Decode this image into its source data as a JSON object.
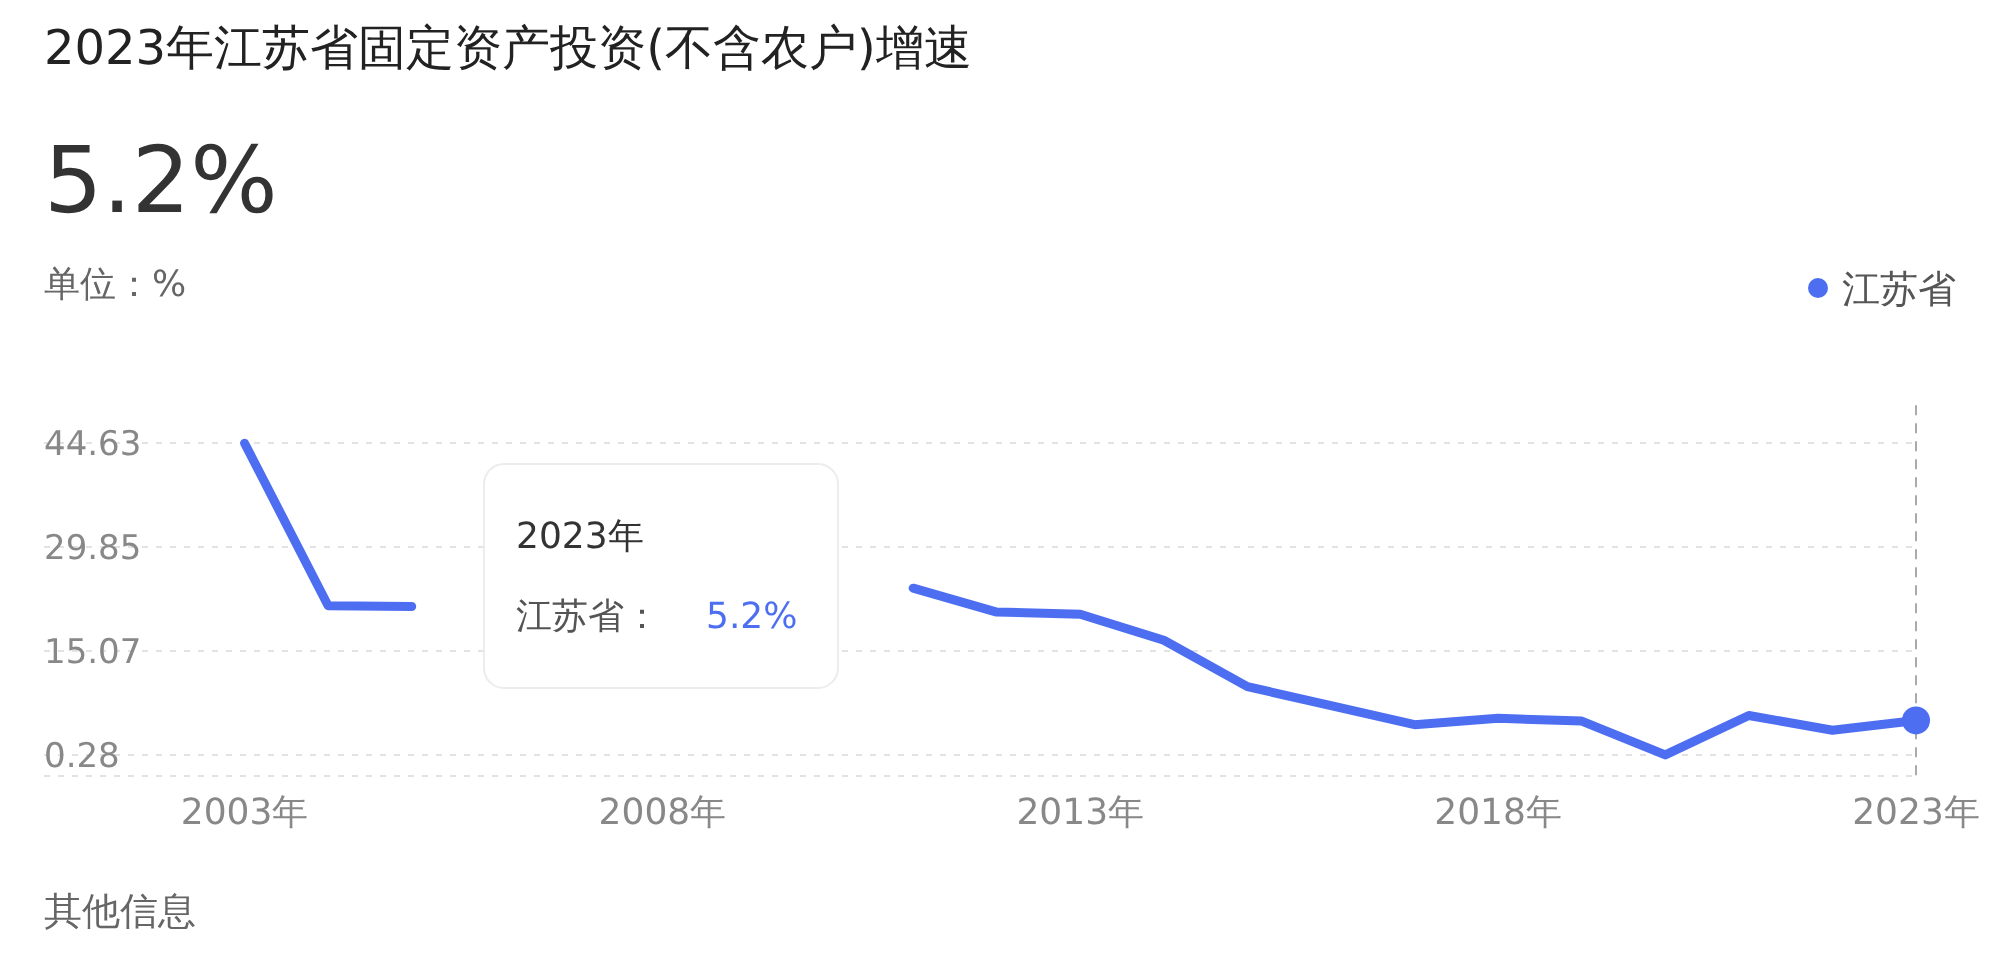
{
  "chart_data": {
    "type": "line",
    "title": "2023年江苏省固定资产投资(不含农户)增速",
    "subtitle": "5.2%",
    "ylabel": "单位：%",
    "x": [
      2003,
      2004,
      2005,
      2006,
      2007,
      2008,
      2009,
      2010,
      2011,
      2012,
      2013,
      2014,
      2015,
      2016,
      2017,
      2018,
      2019,
      2020,
      2021,
      2022,
      2023
    ],
    "series": [
      {
        "name": "江苏省",
        "color": "#4e6ef2",
        "values": [
          44.6,
          21.5,
          21.4,
          null,
          null,
          null,
          null,
          null,
          24.0,
          20.6,
          20.3,
          16.6,
          10.0,
          7.3,
          4.6,
          5.5,
          5.1,
          0.3,
          5.9,
          3.8,
          5.2
        ]
      }
    ],
    "xlim": [
      2000.6,
      2023
    ],
    "ylim": [
      -2.7,
      50
    ],
    "xticks": [
      {
        "value": 2003,
        "label": "2003年"
      },
      {
        "value": 2008,
        "label": "2008年"
      },
      {
        "value": 2013,
        "label": "2013年"
      },
      {
        "value": 2018,
        "label": "2018年"
      },
      {
        "value": 2023,
        "label": "2023年"
      }
    ],
    "yticks": [
      0.28,
      15.07,
      29.85,
      44.63
    ],
    "grid": "y",
    "legend": "top right",
    "marker": "none",
    "line_style": "solid",
    "ref_lines": [
      {
        "axis": "x",
        "value": 2023,
        "color": "#aaaaaa",
        "line_style": "dashed"
      }
    ],
    "annotations": [
      "2023年",
      "江苏省：",
      "5.2%",
      "其他信息"
    ]
  }
}
